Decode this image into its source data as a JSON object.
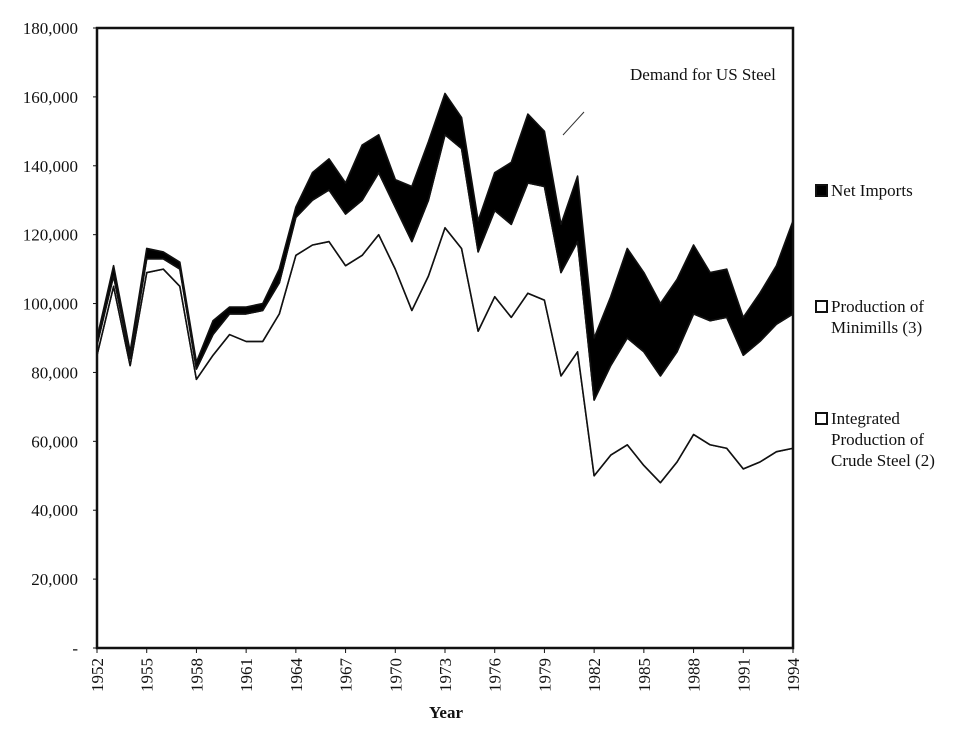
{
  "chart_data": {
    "type": "stacked_area",
    "annotation": "Demand for US Steel",
    "x_label": "Year",
    "x": [
      1952,
      1953,
      1954,
      1955,
      1956,
      1957,
      1958,
      1959,
      1960,
      1961,
      1962,
      1963,
      1964,
      1965,
      1966,
      1967,
      1968,
      1969,
      1970,
      1971,
      1972,
      1973,
      1974,
      1975,
      1976,
      1977,
      1978,
      1979,
      1980,
      1981,
      1982,
      1983,
      1984,
      1985,
      1986,
      1987,
      1988,
      1989,
      1990,
      1991,
      1992,
      1993,
      1994
    ],
    "series": [
      {
        "name": "Integrated Production of Crude Steel (2)",
        "color": "#ffffff",
        "values": [
          85000,
          105000,
          82000,
          109000,
          110000,
          105000,
          78000,
          85000,
          91000,
          89000,
          89000,
          97000,
          114000,
          117000,
          118000,
          111000,
          114000,
          120000,
          110000,
          98000,
          108000,
          122000,
          116000,
          92000,
          102000,
          96000,
          103000,
          101000,
          79000,
          86000,
          50000,
          56000,
          59000,
          53000,
          48000,
          54000,
          62000,
          59000,
          58000,
          52000,
          54000,
          57000,
          58000
        ]
      },
      {
        "name": "Production of Minimills (3)",
        "color": "#ffffff",
        "values": [
          3000,
          3000,
          2000,
          4000,
          3000,
          5000,
          3000,
          6000,
          6000,
          8000,
          9000,
          9000,
          11000,
          13000,
          15000,
          15000,
          16000,
          18000,
          18000,
          20000,
          22000,
          27000,
          29000,
          23000,
          25000,
          27000,
          32000,
          33000,
          30000,
          32000,
          22000,
          26000,
          31000,
          33000,
          31000,
          32000,
          35000,
          36000,
          38000,
          33000,
          35000,
          37000,
          39000
        ]
      },
      {
        "name": "Net Imports",
        "color": "#000000",
        "values": [
          2000,
          3000,
          2000,
          3000,
          2000,
          2000,
          2000,
          4000,
          2000,
          2000,
          2000,
          4000,
          3000,
          8000,
          9000,
          9000,
          16000,
          11000,
          8000,
          16000,
          17000,
          12000,
          9000,
          9000,
          11000,
          18000,
          20000,
          16000,
          14000,
          19000,
          18000,
          20000,
          26000,
          23000,
          21000,
          21000,
          20000,
          14000,
          14000,
          11000,
          14000,
          17000,
          27000
        ]
      }
    ],
    "ylim": [
      0,
      180000
    ],
    "yticks": [
      {
        "value": 0,
        "label": "-"
      },
      {
        "value": 20000,
        "label": "20,000"
      },
      {
        "value": 40000,
        "label": "40,000"
      },
      {
        "value": 60000,
        "label": "60,000"
      },
      {
        "value": 80000,
        "label": "80,000"
      },
      {
        "value": 100000,
        "label": "100,000"
      },
      {
        "value": 120000,
        "label": "120,000"
      },
      {
        "value": 140000,
        "label": "140,000"
      },
      {
        "value": 160000,
        "label": "160,000"
      },
      {
        "value": 180000,
        "label": "180,000"
      }
    ],
    "xlim": [
      1952,
      1994
    ],
    "xticks": [
      1952,
      1955,
      1958,
      1961,
      1964,
      1967,
      1970,
      1973,
      1976,
      1979,
      1982,
      1985,
      1988,
      1991,
      1994
    ]
  }
}
